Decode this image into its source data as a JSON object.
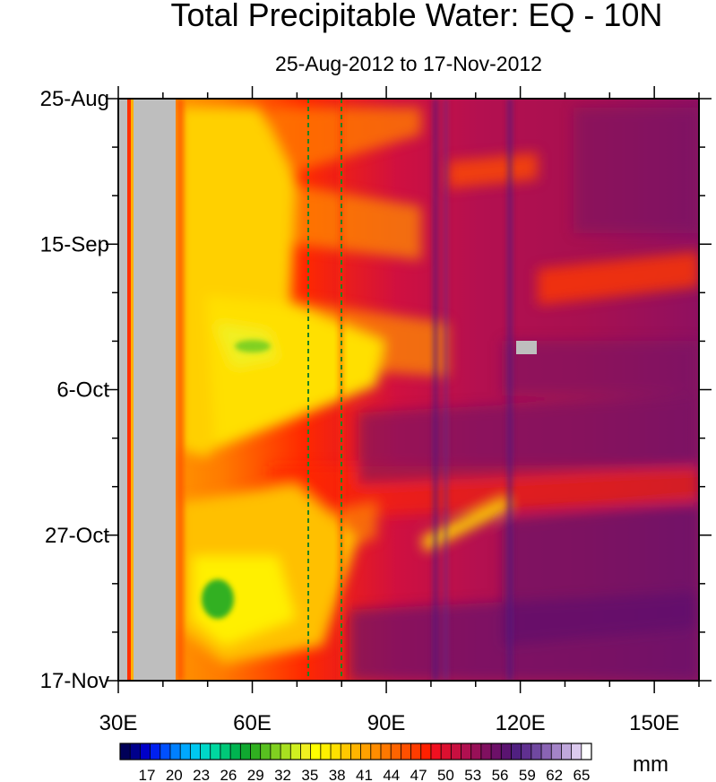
{
  "chart_data": {
    "type": "heatmap",
    "title": "Total Precipitable Water: EQ - 10N",
    "subtitle": "25-Aug-2012 to 17-Nov-2012",
    "x_ticks": [
      {
        "value": 30,
        "label": "30E"
      },
      {
        "value": 60,
        "label": "60E"
      },
      {
        "value": 90,
        "label": "90E"
      },
      {
        "value": 120,
        "label": "120E"
      },
      {
        "value": 150,
        "label": "150E"
      }
    ],
    "xlim": [
      30,
      160
    ],
    "y_ticks": [
      {
        "value": "2012-08-25",
        "label": "25-Aug"
      },
      {
        "value": "2012-09-15",
        "label": "15-Sep"
      },
      {
        "value": "2012-10-06",
        "label": "6-Oct"
      },
      {
        "value": "2012-10-27",
        "label": "27-Oct"
      },
      {
        "value": "2012-11-17",
        "label": "17-Nov"
      }
    ],
    "ylim": [
      "2012-08-25",
      "2012-11-17"
    ],
    "colorbar": {
      "unit": "mm",
      "labels": [
        "17",
        "20",
        "23",
        "26",
        "29",
        "32",
        "35",
        "38",
        "41",
        "44",
        "47",
        "50",
        "53",
        "56",
        "59",
        "62",
        "65"
      ],
      "colors": [
        "#000058",
        "#00008c",
        "#0000c8",
        "#0020f0",
        "#0050ff",
        "#0080ff",
        "#00a8ff",
        "#00c8f0",
        "#00d8c8",
        "#00d8a0",
        "#00c878",
        "#00b450",
        "#10a830",
        "#30b020",
        "#58c020",
        "#80d020",
        "#a8e020",
        "#d0f020",
        "#f0f020",
        "#ffff00",
        "#fff000",
        "#ffe000",
        "#ffc800",
        "#ffb400",
        "#ffa000",
        "#ff8c00",
        "#ff7800",
        "#ff6400",
        "#ff5000",
        "#ff3c00",
        "#ff2000",
        "#f01020",
        "#dc1030",
        "#c81040",
        "#b01050",
        "#981058",
        "#801060",
        "#6c1068",
        "#5a1470",
        "#502080",
        "#603090",
        "#7048a0",
        "#8a64b4",
        "#a484c8",
        "#c0a8dc",
        "#dccaee",
        "#ffffff"
      ]
    },
    "missing_color": "#bebebe",
    "reference_lines": [
      72.5,
      80
    ]
  }
}
